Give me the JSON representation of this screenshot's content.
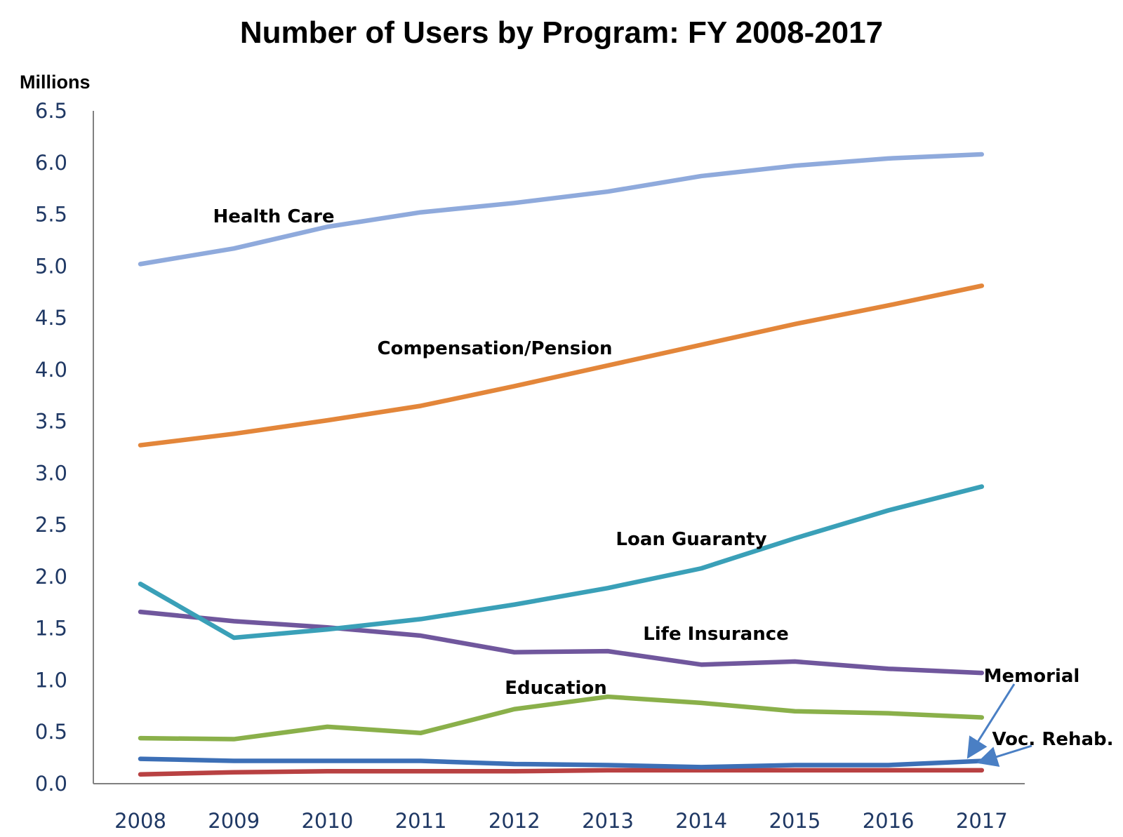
{
  "chart_data": {
    "type": "line",
    "title": "Number of Users by Program: FY 2008-2017",
    "ylabel": "Millions",
    "xlabel": "",
    "ylim": [
      0,
      6.5
    ],
    "yticks": [
      "0.0",
      "0.5",
      "1.0",
      "1.5",
      "2.0",
      "2.5",
      "3.0",
      "3.5",
      "4.0",
      "4.5",
      "5.0",
      "5.5",
      "6.0",
      "6.5"
    ],
    "categories": [
      "2008",
      "2009",
      "2010",
      "2011",
      "2012",
      "2013",
      "2014",
      "2015",
      "2016",
      "2017"
    ],
    "grid": false,
    "series": [
      {
        "name": "Health Care",
        "color": "#8faadc",
        "values": [
          5.02,
          5.17,
          5.38,
          5.52,
          5.61,
          5.72,
          5.87,
          5.97,
          6.04,
          6.08
        ]
      },
      {
        "name": "Compensation/Pension",
        "color": "#e3863a",
        "values": [
          3.27,
          3.38,
          3.51,
          3.65,
          3.84,
          4.04,
          4.24,
          4.44,
          4.62,
          4.81
        ]
      },
      {
        "name": "Loan Guaranty",
        "color": "#3aa0b8",
        "values": [
          1.93,
          1.41,
          1.49,
          1.59,
          1.73,
          1.89,
          2.08,
          2.37,
          2.64,
          2.87
        ]
      },
      {
        "name": "Life Insurance",
        "color": "#70579d",
        "values": [
          1.66,
          1.57,
          1.51,
          1.43,
          1.27,
          1.28,
          1.15,
          1.18,
          1.11,
          1.07
        ]
      },
      {
        "name": "Education",
        "color": "#8ab04a",
        "values": [
          0.44,
          0.43,
          0.55,
          0.49,
          0.72,
          0.84,
          0.78,
          0.7,
          0.68,
          0.64
        ]
      },
      {
        "name": "Memorial",
        "color": "#3c6fb6",
        "values": [
          0.24,
          0.22,
          0.22,
          0.22,
          0.19,
          0.18,
          0.16,
          0.18,
          0.18,
          0.22
        ]
      },
      {
        "name": "Voc. Rehab.",
        "color": "#b84142",
        "values": [
          0.09,
          0.11,
          0.12,
          0.12,
          0.12,
          0.13,
          0.13,
          0.13,
          0.13,
          0.13
        ]
      }
    ],
    "axis_color": "#808080",
    "arrow_color": "#4a7fc4"
  }
}
